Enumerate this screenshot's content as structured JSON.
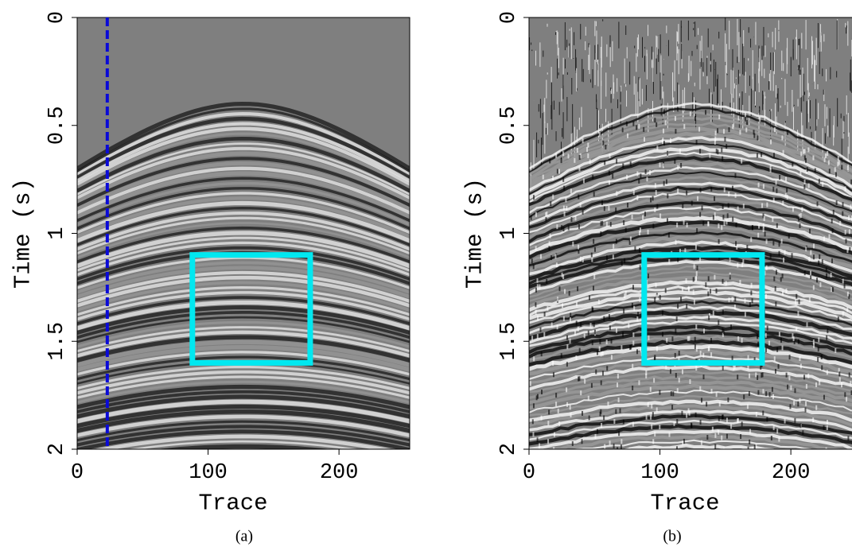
{
  "chart_data": [
    {
      "type": "image",
      "xlabel": "Trace",
      "ylabel": "Time (s)",
      "caption": "(a)",
      "xlim": [
        0,
        254
      ],
      "ylim": [
        2,
        0
      ],
      "xticks": [
        0,
        100,
        200
      ],
      "yticks": [
        0,
        0.5,
        1,
        1.5,
        2
      ],
      "box": {
        "x": [
          88,
          178
        ],
        "y": [
          1.1,
          1.6
        ],
        "color": "#00e8f0"
      },
      "vline": {
        "x": 23,
        "color": "#0a0ad8"
      },
      "noisy": false
    },
    {
      "type": "image",
      "xlabel": "Trace",
      "ylabel": "Time (s)",
      "caption": "(b)",
      "xlim": [
        0,
        254
      ],
      "ylim": [
        2,
        0
      ],
      "xticks": [
        0,
        100,
        200
      ],
      "yticks": [
        0,
        0.5,
        1,
        1.5,
        2
      ],
      "box": {
        "x": [
          88,
          178
        ],
        "y": [
          1.1,
          1.6
        ],
        "color": "#00e8f0"
      },
      "noisy": true
    }
  ]
}
